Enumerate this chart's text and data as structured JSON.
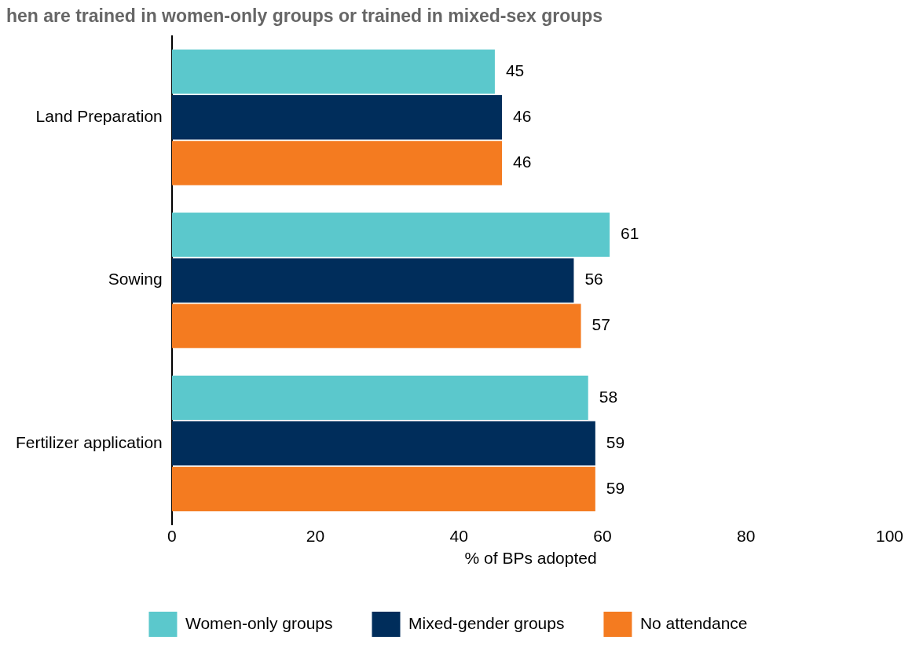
{
  "chart_data": {
    "type": "bar",
    "orientation": "horizontal",
    "title": "hen are trained in women-only groups or trained in mixed-sex groups",
    "xlabel": "% of BPs adopted",
    "categories": [
      "Land Preparation",
      "Sowing",
      "Fertilizer application"
    ],
    "series": [
      {
        "name": "Women-only groups",
        "color": "#5bc8cc",
        "values": [
          45,
          61,
          58
        ]
      },
      {
        "name": "Mixed-gender groups",
        "color": "#002d5b",
        "values": [
          46,
          56,
          59
        ]
      },
      {
        "name": "No attendance",
        "color": "#f47b20",
        "values": [
          46,
          57,
          59
        ]
      }
    ],
    "xlim": [
      0,
      100
    ],
    "xticks": [
      0,
      20,
      40,
      60,
      80,
      100
    ],
    "grid": false,
    "legend": "bottom",
    "data_labels": true
  }
}
